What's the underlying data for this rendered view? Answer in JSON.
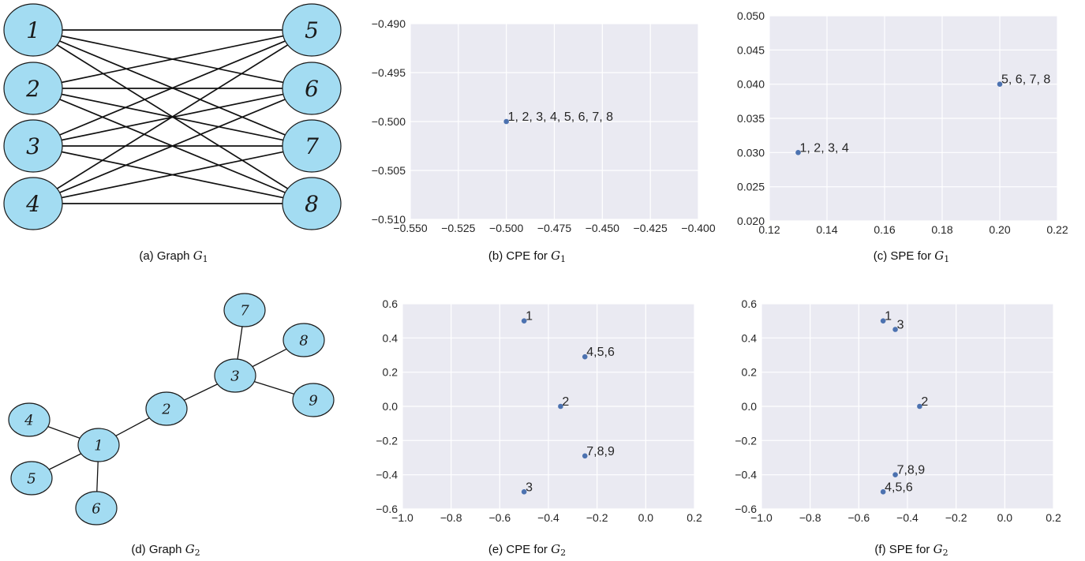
{
  "panels": [
    {
      "id": "a",
      "kind": "graph",
      "caption": {
        "prefix": "(a) Graph ",
        "math": "G",
        "sub": "1"
      },
      "nodes": [
        "1",
        "2",
        "3",
        "4",
        "5",
        "6",
        "7",
        "8"
      ],
      "edges": [
        [
          "1",
          "5"
        ],
        [
          "1",
          "6"
        ],
        [
          "1",
          "7"
        ],
        [
          "1",
          "8"
        ],
        [
          "2",
          "5"
        ],
        [
          "2",
          "6"
        ],
        [
          "2",
          "7"
        ],
        [
          "2",
          "8"
        ],
        [
          "3",
          "5"
        ],
        [
          "3",
          "6"
        ],
        [
          "3",
          "7"
        ],
        [
          "3",
          "8"
        ],
        [
          "4",
          "5"
        ],
        [
          "4",
          "6"
        ],
        [
          "4",
          "7"
        ],
        [
          "4",
          "8"
        ]
      ]
    },
    {
      "id": "b",
      "kind": "scatter",
      "caption": {
        "prefix": "(b) CPE for ",
        "math": "G",
        "sub": "1"
      }
    },
    {
      "id": "c",
      "kind": "scatter",
      "caption": {
        "prefix": "(c) SPE for ",
        "math": "G",
        "sub": "1"
      }
    },
    {
      "id": "d",
      "kind": "graph",
      "caption": {
        "prefix": "(d) Graph ",
        "math": "G",
        "sub": "2"
      },
      "nodes": [
        "1",
        "2",
        "3",
        "4",
        "5",
        "6",
        "7",
        "8",
        "9"
      ],
      "edges": [
        [
          "1",
          "2"
        ],
        [
          "2",
          "3"
        ],
        [
          "1",
          "4"
        ],
        [
          "1",
          "5"
        ],
        [
          "1",
          "6"
        ],
        [
          "3",
          "7"
        ],
        [
          "3",
          "8"
        ],
        [
          "3",
          "9"
        ]
      ]
    },
    {
      "id": "e",
      "kind": "scatter",
      "caption": {
        "prefix": "(e) CPE for ",
        "math": "G",
        "sub": "2"
      }
    },
    {
      "id": "f",
      "kind": "scatter",
      "caption": {
        "prefix": "(f) SPE for ",
        "math": "G",
        "sub": "2"
      }
    }
  ],
  "chart_data": [
    {
      "panel": "b",
      "type": "scatter",
      "title": "",
      "xlim": [
        -0.55,
        -0.4
      ],
      "ylim": [
        -0.51,
        -0.49
      ],
      "xticks": [
        -0.55,
        -0.525,
        -0.5,
        -0.475,
        -0.45,
        -0.425,
        -0.4
      ],
      "yticks": [
        -0.51,
        -0.505,
        -0.5,
        -0.495,
        -0.49
      ],
      "xtick_labels": [
        "−0.550",
        "−0.525",
        "−0.500",
        "−0.475",
        "−0.450",
        "−0.425",
        "−0.400"
      ],
      "ytick_labels": [
        "−0.510",
        "−0.505",
        "−0.500",
        "−0.495",
        "−0.490"
      ],
      "grid": true,
      "points": [
        {
          "x": -0.5,
          "y": -0.5,
          "label": "1, 2, 3, 4, 5, 6, 7, 8"
        }
      ]
    },
    {
      "panel": "c",
      "type": "scatter",
      "title": "",
      "xlim": [
        0.12,
        0.22
      ],
      "ylim": [
        0.02,
        0.05
      ],
      "xticks": [
        0.12,
        0.14,
        0.16,
        0.18,
        0.2,
        0.22
      ],
      "yticks": [
        0.02,
        0.025,
        0.03,
        0.035,
        0.04,
        0.045,
        0.05
      ],
      "xtick_labels": [
        "0.12",
        "0.14",
        "0.16",
        "0.18",
        "0.20",
        "0.22"
      ],
      "ytick_labels": [
        "0.020",
        "0.025",
        "0.030",
        "0.035",
        "0.040",
        "0.045",
        "0.050"
      ],
      "grid": true,
      "points": [
        {
          "x": 0.13,
          "y": 0.03,
          "label": "1, 2, 3, 4"
        },
        {
          "x": 0.2,
          "y": 0.04,
          "label": "5, 6, 7, 8"
        }
      ]
    },
    {
      "panel": "e",
      "type": "scatter",
      "title": "",
      "xlim": [
        -1.0,
        0.2
      ],
      "ylim": [
        -0.6,
        0.6
      ],
      "xticks": [
        -1.0,
        -0.8,
        -0.6,
        -0.4,
        -0.2,
        0.0,
        0.2
      ],
      "yticks": [
        -0.6,
        -0.4,
        -0.2,
        0.0,
        0.2,
        0.4,
        0.6
      ],
      "xtick_labels": [
        "−1.0",
        "−0.8",
        "−0.6",
        "−0.4",
        "−0.2",
        "0.0",
        "0.2"
      ],
      "ytick_labels": [
        "−0.6",
        "−0.4",
        "−0.2",
        "0.0",
        "0.2",
        "0.4",
        "0.6"
      ],
      "grid": true,
      "points": [
        {
          "x": -0.5,
          "y": 0.5,
          "label": "1"
        },
        {
          "x": -0.25,
          "y": 0.29,
          "label": "4,5,6"
        },
        {
          "x": -0.35,
          "y": 0.0,
          "label": "2"
        },
        {
          "x": -0.25,
          "y": -0.29,
          "label": "7,8,9"
        },
        {
          "x": -0.5,
          "y": -0.5,
          "label": "3"
        }
      ]
    },
    {
      "panel": "f",
      "type": "scatter",
      "title": "",
      "xlim": [
        -1.0,
        0.2
      ],
      "ylim": [
        -0.6,
        0.6
      ],
      "xticks": [
        -1.0,
        -0.8,
        -0.6,
        -0.4,
        -0.2,
        0.0,
        0.2
      ],
      "yticks": [
        -0.6,
        -0.4,
        -0.2,
        0.0,
        0.2,
        0.4,
        0.6
      ],
      "xtick_labels": [
        "−1.0",
        "−0.8",
        "−0.6",
        "−0.4",
        "−0.2",
        "0.0",
        "0.2"
      ],
      "ytick_labels": [
        "−0.6",
        "−0.4",
        "−0.2",
        "0.0",
        "0.2",
        "0.4",
        "0.6"
      ],
      "grid": true,
      "points": [
        {
          "x": -0.5,
          "y": 0.5,
          "label": "1"
        },
        {
          "x": -0.45,
          "y": 0.45,
          "label": "3"
        },
        {
          "x": -0.35,
          "y": 0.0,
          "label": "2"
        },
        {
          "x": -0.45,
          "y": -0.4,
          "label": "7,8,9"
        },
        {
          "x": -0.5,
          "y": -0.5,
          "label": "4,5,6"
        }
      ]
    }
  ],
  "colors": {
    "plot_background": "#eaeaf2",
    "grid": "#ffffff",
    "point": "#4c72b0",
    "node_fill": "#a3dcf2"
  }
}
